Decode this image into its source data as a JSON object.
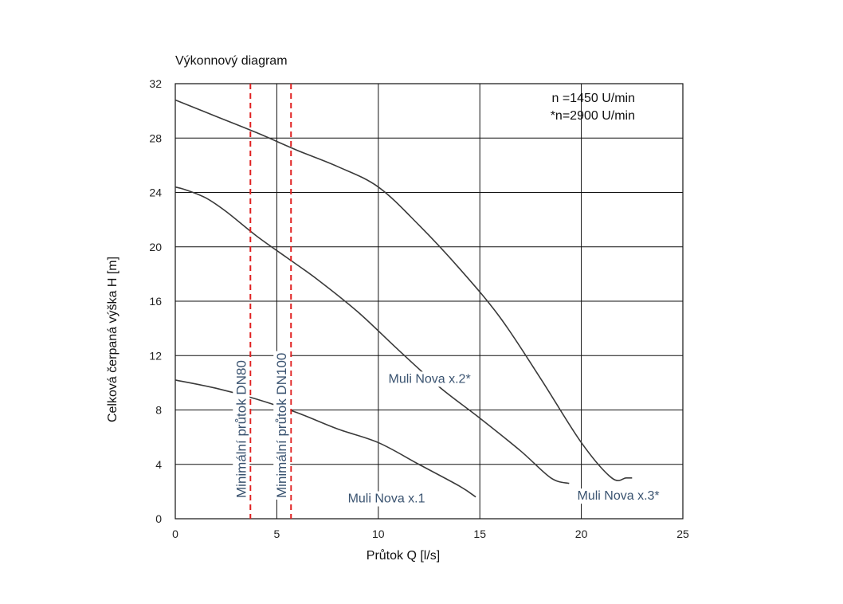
{
  "chart_data": {
    "type": "line",
    "title": "Výkonnový diagram",
    "xlabel": "Průtok Q [l/s]",
    "ylabel": "Celková čerpaná výška H [m]",
    "xlim": [
      0,
      25
    ],
    "ylim": [
      0,
      32
    ],
    "xticks": [
      "0",
      "5",
      "10",
      "15",
      "20",
      "25"
    ],
    "yticks": [
      "0",
      "4",
      "8",
      "12",
      "16",
      "20",
      "24",
      "28",
      "32"
    ],
    "grid": true,
    "notes": [
      "n =1450 U/min",
      "*n=2900 U/min"
    ],
    "series": [
      {
        "name": "Muli Nova x.1",
        "x": [
          0,
          2,
          4,
          6,
          8,
          10,
          12,
          14,
          14.8
        ],
        "y": [
          10.2,
          9.6,
          8.8,
          7.8,
          6.6,
          5.6,
          4.0,
          2.4,
          1.6
        ],
        "label_at": [
          8.5,
          1.2
        ]
      },
      {
        "name": "Muli Nova x.2*",
        "x": [
          0,
          0.5,
          1.5,
          2.5,
          4,
          5.5,
          7,
          9,
          11,
          13,
          15,
          17,
          18.5,
          19.4
        ],
        "y": [
          24.4,
          24.2,
          23.6,
          22.6,
          20.8,
          19.2,
          17.6,
          15.2,
          12.4,
          9.7,
          7.4,
          5.0,
          3.0,
          2.6
        ],
        "label_at": [
          10.5,
          10.0
        ]
      },
      {
        "name": "Muli Nova x.3*",
        "x": [
          0,
          2,
          4,
          6,
          8,
          10,
          12,
          14,
          16,
          18,
          20,
          21.5,
          22.2,
          22.5
        ],
        "y": [
          30.8,
          29.6,
          28.4,
          27.1,
          25.9,
          24.4,
          21.6,
          18.4,
          14.8,
          10.3,
          5.6,
          3.0,
          3.0,
          3.0
        ],
        "label_at": [
          19.8,
          1.4
        ]
      }
    ],
    "limits": [
      {
        "name": "Minimální průtok DN80",
        "x": 3.7
      },
      {
        "name": "Minimální průtok DN100",
        "x": 5.7
      }
    ],
    "limit_color": "#e02020",
    "curve_color": "#3a3a3a",
    "grid_color": "#111111"
  }
}
